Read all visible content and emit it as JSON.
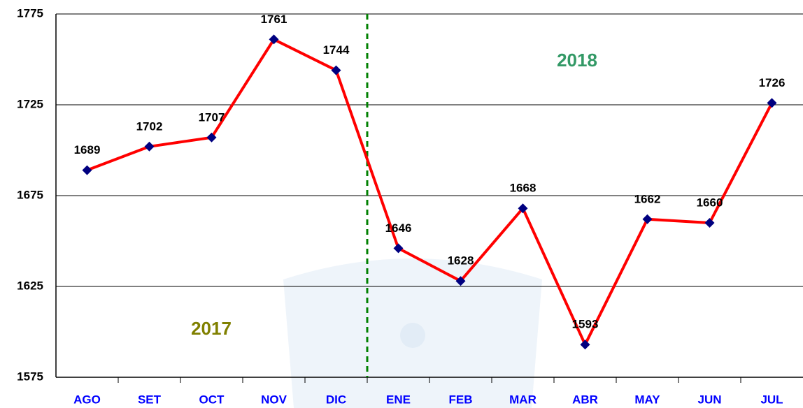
{
  "chart_data": {
    "type": "line",
    "categories": [
      "AGO",
      "SET",
      "OCT",
      "NOV",
      "DIC",
      "ENE",
      "FEB",
      "MAR",
      "ABR",
      "MAY",
      "JUN",
      "JUL"
    ],
    "series": [
      {
        "color": "#ff0000",
        "marker_color": "#000080",
        "values": [
          1689,
          1702,
          1707,
          1761,
          1744,
          1646,
          1628,
          1668,
          1593,
          1662,
          1660,
          1726
        ]
      }
    ],
    "ylim": [
      1575,
      1775
    ],
    "yticks": [
      1575,
      1625,
      1675,
      1725,
      1775
    ],
    "grid": true,
    "annotations": [
      {
        "text": "2017",
        "color": "#808000"
      },
      {
        "text": "2018",
        "color": "#339966"
      }
    ]
  }
}
